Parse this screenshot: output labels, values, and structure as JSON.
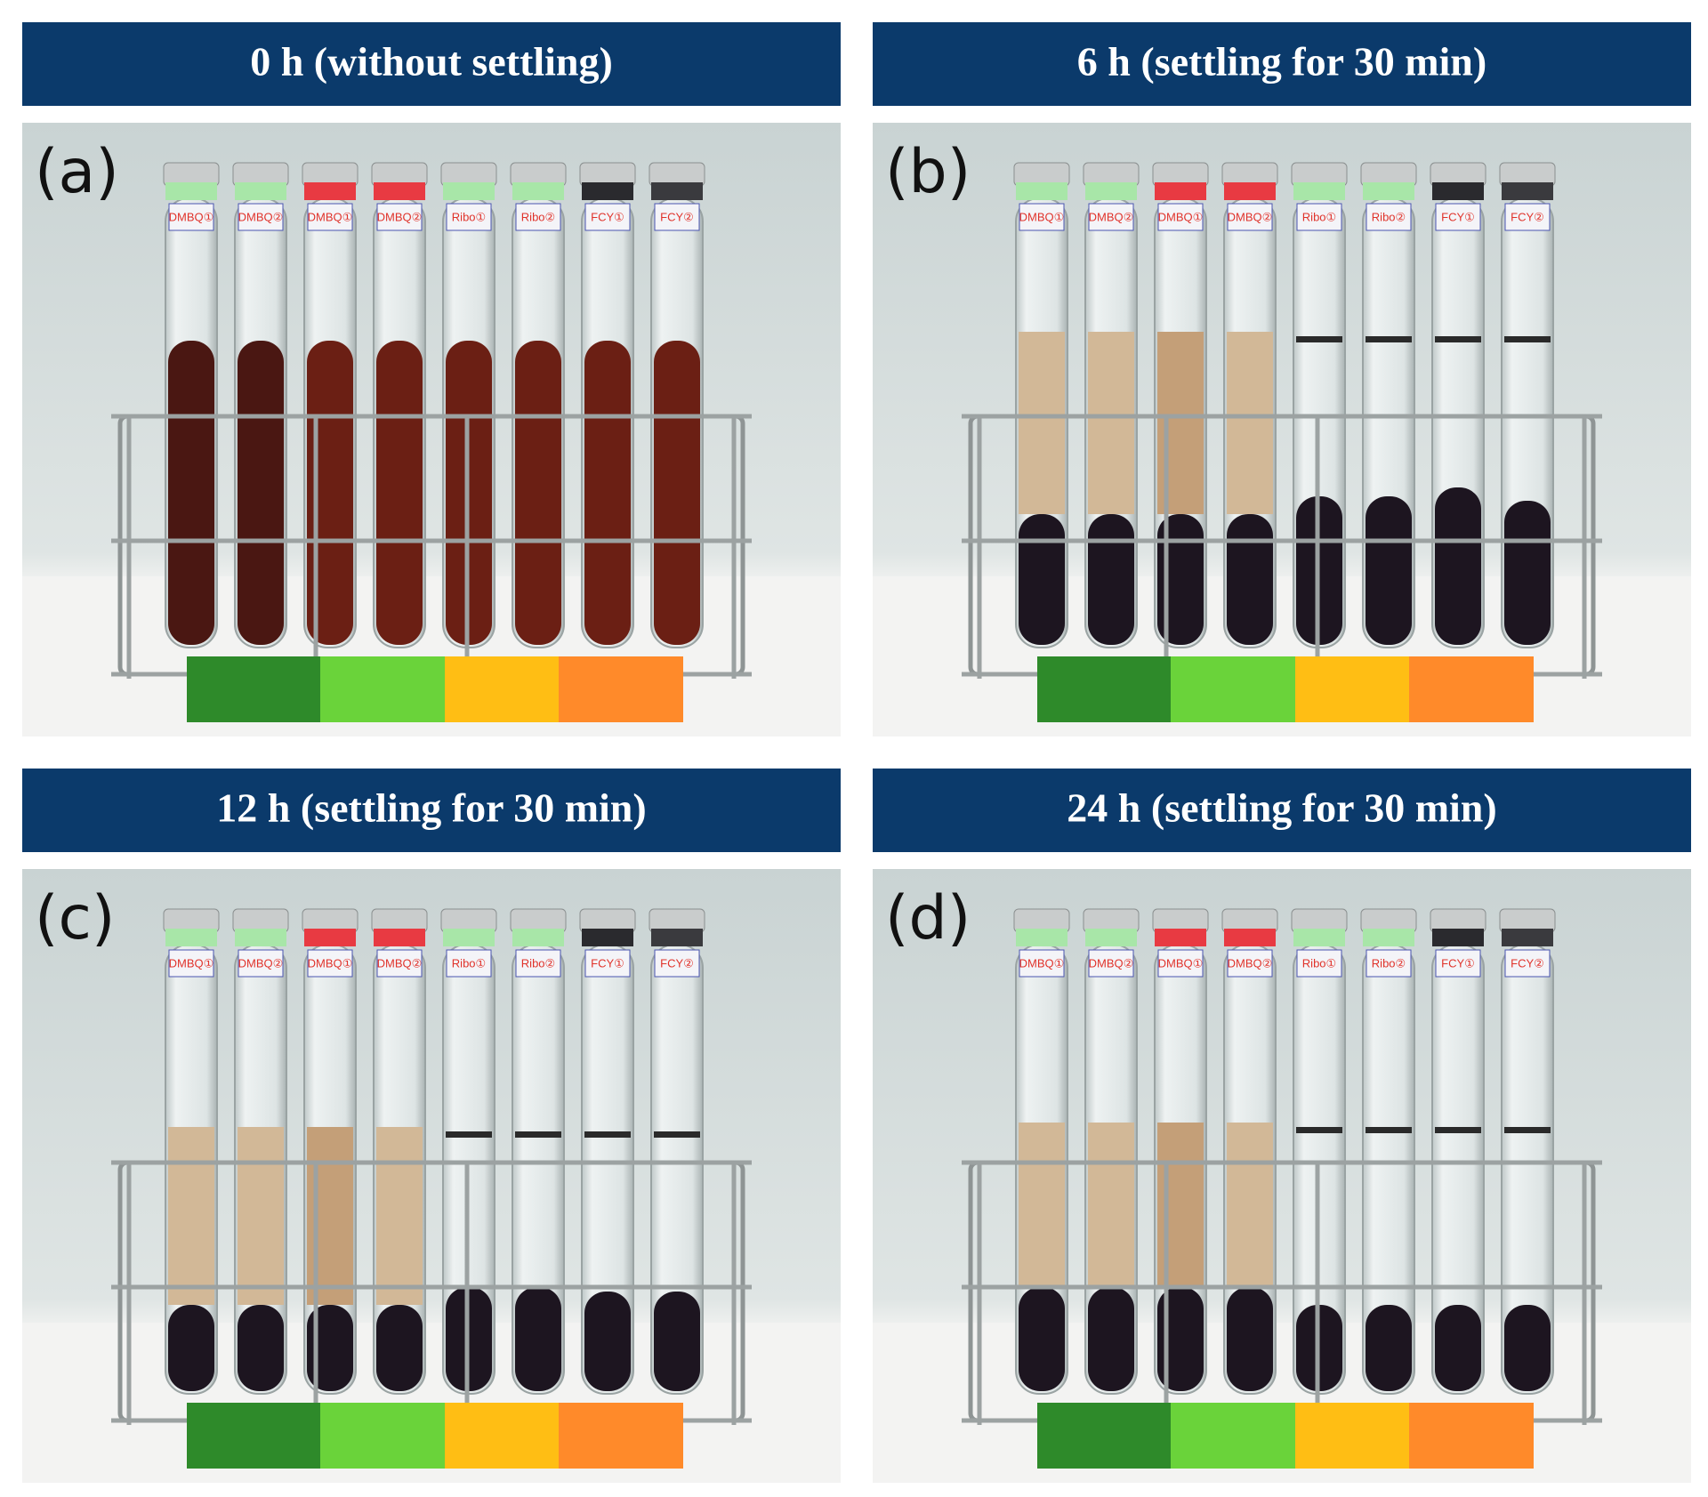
{
  "panels": [
    {
      "letter": "(a)",
      "title": "0 h (without settling)"
    },
    {
      "letter": "(b)",
      "title": "6 h (settling for 30 min)"
    },
    {
      "letter": "(c)",
      "title": "12 h (settling for 30 min)"
    },
    {
      "letter": "(d)",
      "title": "24 h (settling for 30 min)"
    }
  ],
  "tube_labels": [
    "DMBQ①",
    "DMBQ②",
    "DMBQ①",
    "DMBQ②",
    "Ribo①",
    "Ribo②",
    "FCY①",
    "FCY②"
  ]
}
